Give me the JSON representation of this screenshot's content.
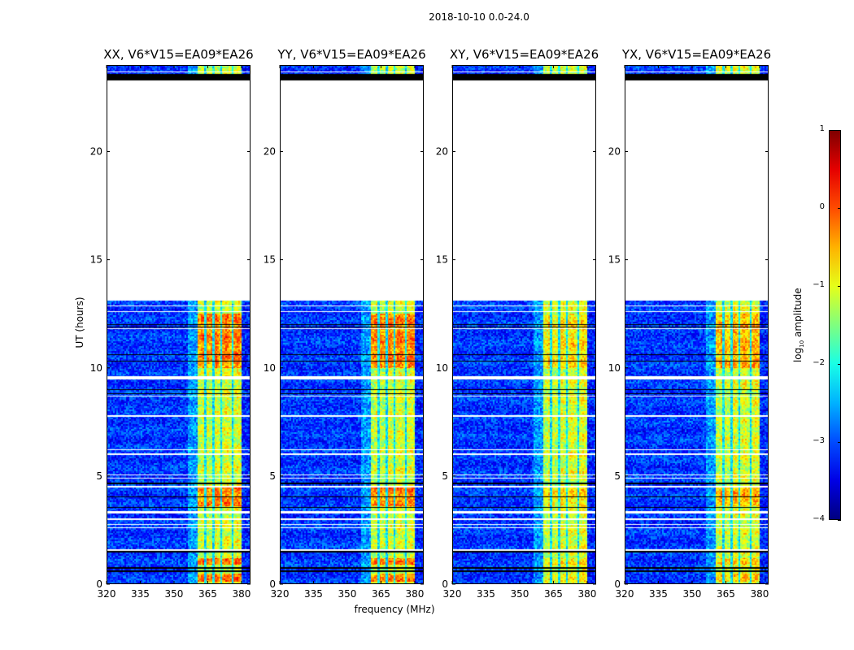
{
  "title": "2018-10-10 0.0-24.0",
  "chart_data": {
    "type": "heatmap",
    "title": "2018-10-10 0.0-24.0",
    "xlabel": "frequency (MHz)",
    "ylabel": "UT (hours)",
    "xlim": [
      320,
      384
    ],
    "ylim": [
      0,
      24
    ],
    "xticks": [
      "320",
      "335",
      "350",
      "365",
      "380"
    ],
    "yticks": [
      "0",
      "5",
      "10",
      "15",
      "20"
    ],
    "xtick_values": [
      320,
      335,
      350,
      365,
      380
    ],
    "ytick_values": [
      0,
      5,
      10,
      15,
      20
    ],
    "colorbar": {
      "label_main": "log",
      "label_sub": "10",
      "label_rest": " amplitude",
      "range": [
        -4,
        1
      ],
      "ticks": [
        "1",
        "0",
        "−1",
        "−2",
        "−3",
        "−4"
      ],
      "tick_values": [
        1,
        0,
        -1,
        -2,
        -3,
        -4
      ],
      "colormap": "jet"
    },
    "panels": [
      {
        "title": "XX, V6*V15=EA09*EA26",
        "hot_boost": 0.8
      },
      {
        "title": "YY, V6*V15=EA09*EA26",
        "hot_boost": 0.8
      },
      {
        "title": "XY, V6*V15=EA09*EA26",
        "hot_boost": 0.3
      },
      {
        "title": "YX, V6*V15=EA09*EA26",
        "hot_boost": 0.55
      }
    ],
    "spectrum_profile_mhz": [
      {
        "from": 320,
        "to": 356,
        "log_amp": -3.1
      },
      {
        "from": 356,
        "to": 360.5,
        "log_amp": -2.6
      },
      {
        "from": 360.5,
        "to": 380,
        "log_amp": -1.1
      },
      {
        "from": 380,
        "to": 384,
        "log_amp": -3.2
      }
    ],
    "dim_channels_mhz": [
      364,
      367.5,
      371,
      376
    ],
    "hot_intervals_hours": [
      [
        0.1,
        0.5
      ],
      [
        0.9,
        1.2
      ],
      [
        3.6,
        4.5
      ],
      [
        10.0,
        12.5
      ]
    ],
    "no_data_intervals_hours": [
      [
        1.55,
        1.6
      ],
      [
        2.58,
        2.63
      ],
      [
        2.74,
        2.79
      ],
      [
        2.98,
        3.03
      ],
      [
        3.25,
        3.37
      ],
      [
        4.48,
        4.53
      ],
      [
        4.88,
        4.93
      ],
      [
        5.03,
        5.08
      ],
      [
        5.98,
        6.03
      ],
      [
        6.18,
        6.22
      ],
      [
        7.73,
        7.8
      ],
      [
        8.68,
        8.72
      ],
      [
        9.45,
        9.6
      ],
      [
        11.78,
        11.82
      ],
      [
        12.58,
        12.62
      ],
      [
        12.83,
        12.87
      ],
      [
        13.1,
        23.3
      ],
      [
        23.65,
        23.7
      ]
    ],
    "flagged_intervals_hours": [
      [
        0.58,
        0.62
      ],
      [
        0.73,
        0.77
      ],
      [
        1.48,
        1.54
      ],
      [
        3.53,
        3.57
      ],
      [
        4.03,
        4.06
      ],
      [
        4.23,
        4.26
      ],
      [
        4.62,
        4.68
      ],
      [
        8.78,
        8.82
      ],
      [
        8.98,
        9.02
      ],
      [
        10.28,
        10.32
      ],
      [
        10.58,
        10.62
      ],
      [
        11.88,
        11.92
      ],
      [
        11.98,
        12.02
      ],
      [
        23.3,
        23.6
      ]
    ]
  }
}
